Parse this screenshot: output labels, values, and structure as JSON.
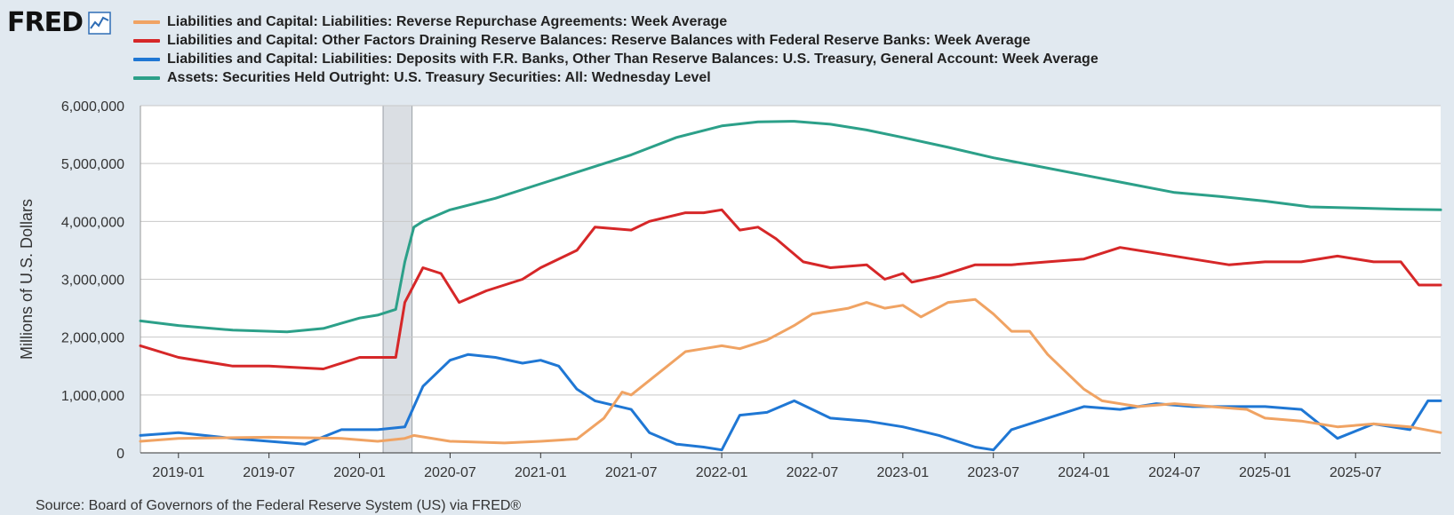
{
  "logo": {
    "text": "FRED",
    "icon": "chart-line-icon"
  },
  "legend": [
    {
      "label": "Liabilities and Capital: Liabilities: Reverse Repurchase Agreements: Week Average",
      "color": "#f0a363"
    },
    {
      "label": "Liabilities and Capital: Other Factors Draining Reserve Balances: Reserve Balances with Federal Reserve Banks: Week Average",
      "color": "#d62728"
    },
    {
      "label": "Liabilities and Capital: Liabilities: Deposits with F.R. Banks, Other Than Reserve Balances: U.S. Treasury, General Account: Week Average",
      "color": "#1f77d4"
    },
    {
      "label": "Assets: Securities Held Outright: U.S. Treasury Securities: All: Wednesday Level",
      "color": "#2ca089"
    }
  ],
  "source": "Source: Board of Governors of the Federal Reserve System (US) via FRED®",
  "chart_data": {
    "type": "line",
    "ylabel": "Millions of U.S. Dollars",
    "ylim": [
      0,
      6000000
    ],
    "yticks": [
      0,
      1000000,
      2000000,
      3000000,
      4000000,
      5000000,
      6000000
    ],
    "ytick_labels": [
      "0",
      "1,000,000",
      "2,000,000",
      "3,000,000",
      "4,000,000",
      "5,000,000",
      "6,000,000"
    ],
    "xlim": [
      2018.79,
      2025.97
    ],
    "xticks": [
      2019.0,
      2019.5,
      2020.0,
      2020.5,
      2021.0,
      2021.5,
      2022.0,
      2022.5,
      2023.0,
      2023.5,
      2024.0,
      2024.5,
      2025.0,
      2025.5
    ],
    "xtick_labels": [
      "2019-01",
      "2019-07",
      "2020-01",
      "2020-07",
      "2021-01",
      "2021-07",
      "2022-01",
      "2022-07",
      "2023-01",
      "2023-07",
      "2024-01",
      "2024-07",
      "2025-01",
      "2025-07"
    ],
    "recession": [
      2020.13,
      2020.29
    ],
    "series": [
      {
        "name": "Liabilities and Capital: Liabilities: Reverse Repurchase Agreements: Week Average",
        "color": "#f0a363",
        "x": [
          2018.79,
          2019.0,
          2019.5,
          2019.9,
          2020.1,
          2020.25,
          2020.3,
          2020.5,
          2020.8,
          2021.0,
          2021.2,
          2021.35,
          2021.45,
          2021.5,
          2021.7,
          2021.8,
          2021.9,
          2022.0,
          2022.1,
          2022.25,
          2022.4,
          2022.5,
          2022.7,
          2022.8,
          2022.9,
          2023.0,
          2023.1,
          2023.25,
          2023.4,
          2023.5,
          2023.6,
          2023.7,
          2023.8,
          2023.9,
          2024.0,
          2024.1,
          2024.3,
          2024.5,
          2024.7,
          2024.9,
          2025.0,
          2025.2,
          2025.4,
          2025.6,
          2025.8,
          2025.97
        ],
        "values": [
          200000,
          250000,
          270000,
          250000,
          200000,
          250000,
          300000,
          200000,
          170000,
          200000,
          240000,
          600000,
          1050000,
          1000000,
          1500000,
          1750000,
          1800000,
          1850000,
          1800000,
          1950000,
          2200000,
          2400000,
          2500000,
          2600000,
          2500000,
          2550000,
          2350000,
          2600000,
          2650000,
          2400000,
          2100000,
          2100000,
          1700000,
          1400000,
          1100000,
          900000,
          800000,
          850000,
          800000,
          750000,
          600000,
          550000,
          450000,
          500000,
          450000,
          350000
        ]
      },
      {
        "name": "Liabilities and Capital: Other Factors Draining Reserve Balances: Reserve Balances with Federal Reserve Banks: Week Average",
        "color": "#d62728",
        "x": [
          2018.79,
          2019.0,
          2019.3,
          2019.5,
          2019.8,
          2020.0,
          2020.2,
          2020.25,
          2020.35,
          2020.45,
          2020.55,
          2020.7,
          2020.9,
          2021.0,
          2021.2,
          2021.3,
          2021.5,
          2021.6,
          2021.8,
          2021.9,
          2022.0,
          2022.1,
          2022.2,
          2022.3,
          2022.45,
          2022.6,
          2022.8,
          2022.9,
          2023.0,
          2023.05,
          2023.2,
          2023.4,
          2023.6,
          2023.8,
          2024.0,
          2024.2,
          2024.4,
          2024.6,
          2024.8,
          2025.0,
          2025.2,
          2025.4,
          2025.6,
          2025.75,
          2025.85,
          2025.97
        ],
        "values": [
          1850000,
          1650000,
          1500000,
          1500000,
          1450000,
          1650000,
          1650000,
          2600000,
          3200000,
          3100000,
          2600000,
          2800000,
          3000000,
          3200000,
          3500000,
          3900000,
          3850000,
          4000000,
          4150000,
          4150000,
          4200000,
          3850000,
          3900000,
          3700000,
          3300000,
          3200000,
          3250000,
          3000000,
          3100000,
          2950000,
          3050000,
          3250000,
          3250000,
          3300000,
          3350000,
          3550000,
          3450000,
          3350000,
          3250000,
          3300000,
          3300000,
          3400000,
          3300000,
          3300000,
          2900000,
          2900000
        ]
      },
      {
        "name": "Liabilities and Capital: Liabilities: Deposits with F.R. Banks, Other Than Reserve Balances: U.S. Treasury, General Account: Week Average",
        "color": "#1f77d4",
        "x": [
          2018.79,
          2019.0,
          2019.3,
          2019.5,
          2019.7,
          2019.9,
          2020.1,
          2020.25,
          2020.35,
          2020.5,
          2020.6,
          2020.75,
          2020.9,
          2021.0,
          2021.1,
          2021.2,
          2021.3,
          2021.5,
          2021.6,
          2021.75,
          2021.9,
          2022.0,
          2022.1,
          2022.25,
          2022.4,
          2022.6,
          2022.8,
          2023.0,
          2023.2,
          2023.4,
          2023.5,
          2023.6,
          2023.8,
          2024.0,
          2024.2,
          2024.4,
          2024.6,
          2024.8,
          2025.0,
          2025.2,
          2025.4,
          2025.6,
          2025.8,
          2025.9,
          2025.97
        ],
        "values": [
          300000,
          350000,
          250000,
          200000,
          150000,
          400000,
          400000,
          450000,
          1150000,
          1600000,
          1700000,
          1650000,
          1550000,
          1600000,
          1500000,
          1100000,
          900000,
          750000,
          350000,
          150000,
          100000,
          50000,
          650000,
          700000,
          900000,
          600000,
          550000,
          450000,
          300000,
          100000,
          50000,
          400000,
          600000,
          800000,
          750000,
          850000,
          800000,
          800000,
          800000,
          750000,
          250000,
          500000,
          400000,
          900000,
          900000
        ]
      },
      {
        "name": "Assets: Securities Held Outright: U.S. Treasury Securities: All: Wednesday Level",
        "color": "#2ca089",
        "x": [
          2018.79,
          2019.0,
          2019.3,
          2019.6,
          2019.8,
          2020.0,
          2020.1,
          2020.2,
          2020.25,
          2020.3,
          2020.35,
          2020.5,
          2020.75,
          2021.0,
          2021.25,
          2021.5,
          2021.75,
          2022.0,
          2022.2,
          2022.4,
          2022.6,
          2022.8,
          2023.0,
          2023.25,
          2023.5,
          2023.75,
          2024.0,
          2024.25,
          2024.5,
          2024.75,
          2025.0,
          2025.25,
          2025.5,
          2025.75,
          2025.97
        ],
        "values": [
          2280000,
          2200000,
          2120000,
          2090000,
          2150000,
          2330000,
          2380000,
          2480000,
          3300000,
          3900000,
          4000000,
          4200000,
          4400000,
          4650000,
          4900000,
          5150000,
          5450000,
          5650000,
          5720000,
          5730000,
          5680000,
          5580000,
          5450000,
          5280000,
          5100000,
          4950000,
          4800000,
          4650000,
          4500000,
          4430000,
          4350000,
          4250000,
          4230000,
          4210000,
          4200000
        ]
      }
    ]
  }
}
